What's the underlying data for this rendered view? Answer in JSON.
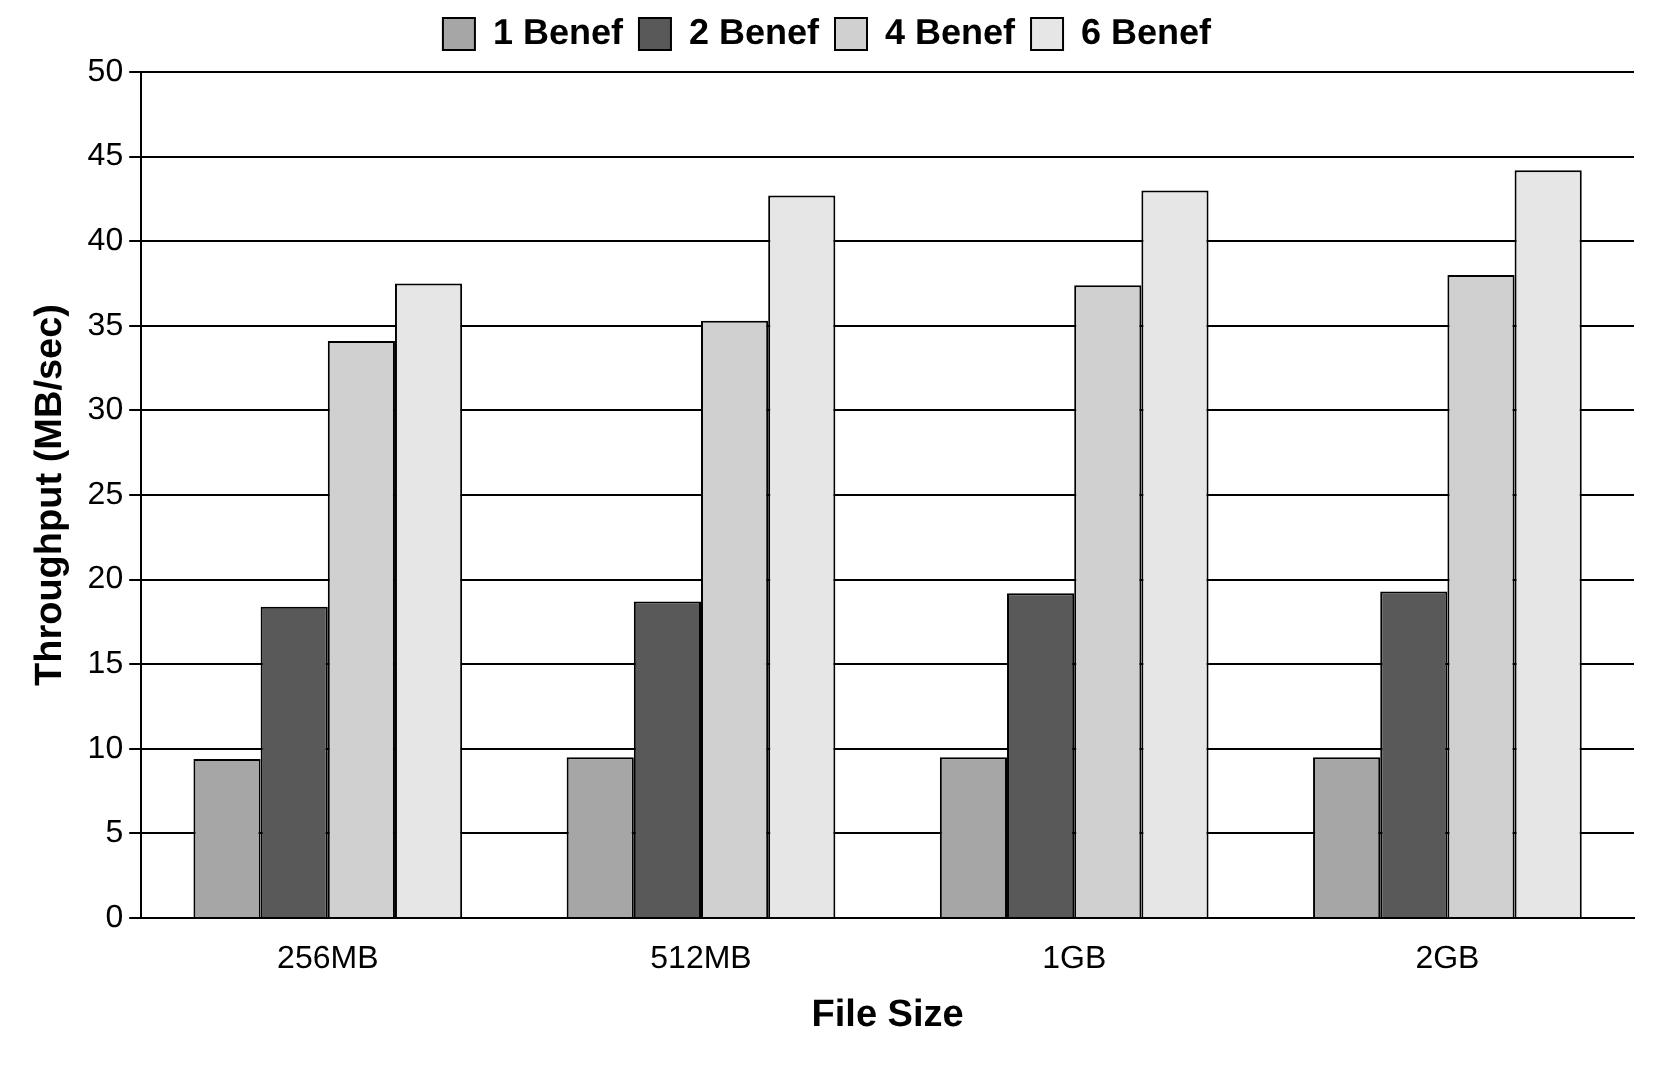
{
  "chart_data": {
    "type": "bar",
    "xlabel": "File Size",
    "ylabel": "Throughput (MB/sec)",
    "categories": [
      "256MB",
      "512MB",
      "1GB",
      "2GB"
    ],
    "series": [
      {
        "name": "1 Benef",
        "color": "#a6a6a6",
        "values": [
          9.4,
          9.5,
          9.5,
          9.5
        ]
      },
      {
        "name": "2 Benef",
        "color": "#595959",
        "values": [
          18.4,
          18.7,
          19.2,
          19.3
        ]
      },
      {
        "name": "4 Benef",
        "color": "#d0d0d0",
        "values": [
          34.1,
          35.3,
          37.4,
          38.0
        ]
      },
      {
        "name": "6 Benef",
        "color": "#e6e6e6",
        "values": [
          37.5,
          42.7,
          43.0,
          44.2
        ]
      }
    ],
    "ylim": [
      0,
      50
    ],
    "yticks": [
      0,
      5,
      10,
      15,
      20,
      25,
      30,
      35,
      40,
      45,
      50
    ],
    "grid": "y",
    "legend": "top"
  }
}
